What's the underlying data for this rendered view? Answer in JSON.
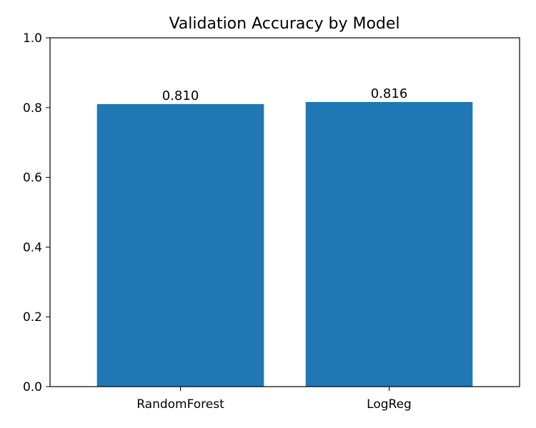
{
  "chart_data": {
    "type": "bar",
    "title": "Validation Accuracy by Model",
    "xlabel": "",
    "ylabel": "",
    "categories": [
      "RandomForest",
      "LogReg"
    ],
    "values": [
      0.81,
      0.816
    ],
    "value_labels": [
      "0.810",
      "0.816"
    ],
    "ylim": [
      0.0,
      1.0
    ],
    "yticks": [
      0.0,
      0.2,
      0.4,
      0.6,
      0.8,
      1.0
    ],
    "ytick_labels": [
      "0.0",
      "0.2",
      "0.4",
      "0.6",
      "0.8",
      "1.0"
    ],
    "grid": false,
    "bar_color": "#1f77b4"
  }
}
